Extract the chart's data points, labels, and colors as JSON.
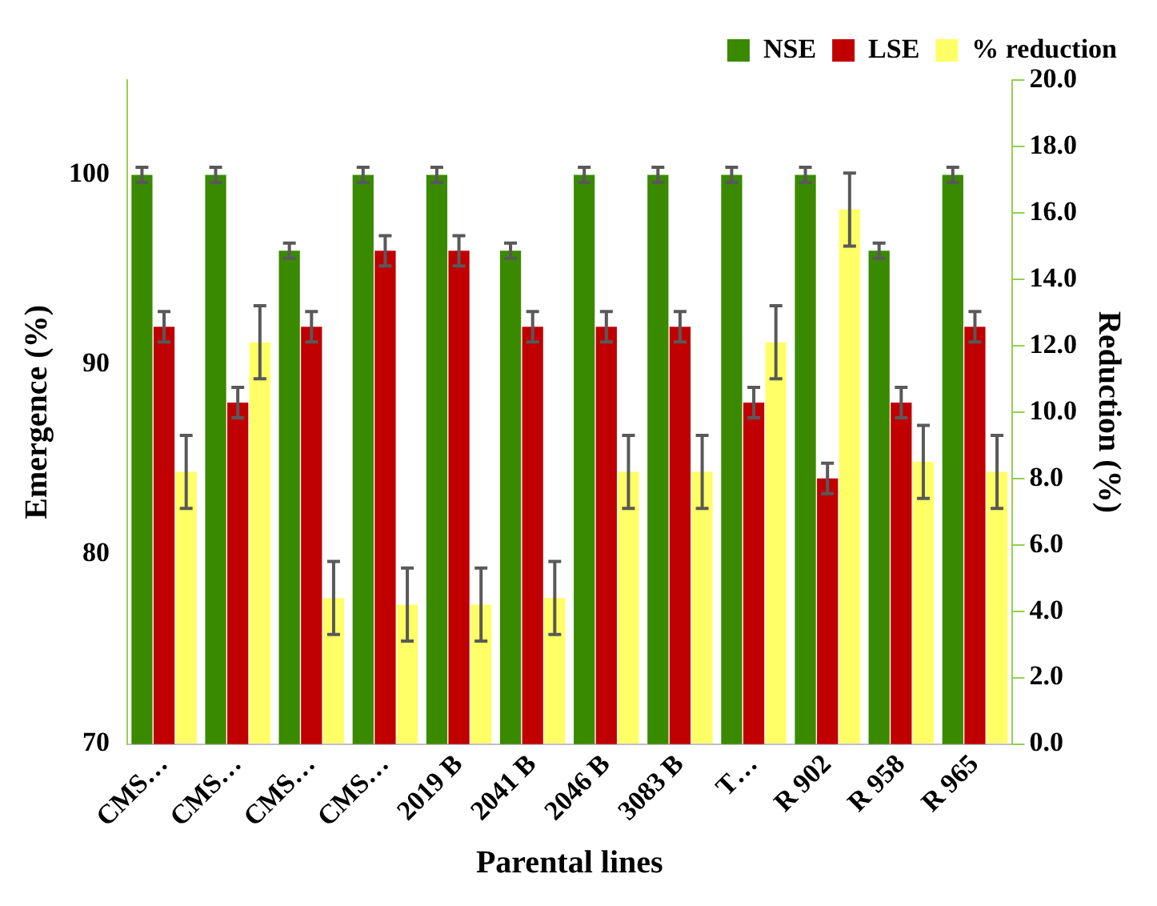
{
  "chart_data": {
    "type": "bar",
    "xlabel": "Parental lines",
    "ylabel": "Emergence (%)",
    "y2label": "Reduction (%)",
    "categories": [
      "CMS…",
      "CMS…",
      "CMS…",
      "CMS…",
      "2019 B",
      "2041 B",
      "2046 B",
      "3083 B",
      "T…",
      "R 902",
      "R 958",
      "R 965"
    ],
    "series": [
      {
        "name": "NSE",
        "color": "#3a8a00",
        "values": [
          100,
          100,
          96,
          100,
          100,
          96,
          100,
          100,
          100,
          100,
          96,
          100
        ],
        "errors": [
          0.4,
          0.4,
          0.4,
          0.4,
          0.4,
          0.4,
          0.4,
          0.4,
          0.4,
          0.4,
          0.4,
          0.4
        ]
      },
      {
        "name": "LSE",
        "color": "#c00000",
        "values": [
          92,
          88,
          92,
          96,
          96,
          92,
          92,
          92,
          88,
          84,
          88,
          92
        ],
        "errors": [
          0.8,
          0.8,
          0.8,
          0.8,
          0.8,
          0.8,
          0.8,
          0.8,
          0.8,
          0.8,
          0.8,
          0.8
        ]
      },
      {
        "name": "% reduction",
        "color": "#ffff66",
        "axis": "y2",
        "values": [
          8.2,
          12.1,
          4.4,
          4.2,
          4.2,
          4.4,
          8.2,
          8.2,
          12.1,
          16.1,
          8.5,
          8.2
        ],
        "errors": [
          1.1,
          1.1,
          1.1,
          1.1,
          1.1,
          1.1,
          1.1,
          1.1,
          1.1,
          1.1,
          1.1,
          1.1
        ]
      }
    ],
    "ylim": [
      70,
      105
    ],
    "yticks": [
      70,
      80,
      90,
      100
    ],
    "y2lim": [
      0,
      20
    ],
    "y2ticks": [
      {
        "value": 0,
        "label": "0.0"
      },
      {
        "value": 2,
        "label": "2.0"
      },
      {
        "value": 4,
        "label": "4.0"
      },
      {
        "value": 6,
        "label": "6.0"
      },
      {
        "value": 8,
        "label": "8.0"
      },
      {
        "value": 10,
        "label": "10.0"
      },
      {
        "value": 12,
        "label": "12.0"
      },
      {
        "value": 14,
        "label": "14.0"
      },
      {
        "value": 16,
        "label": "16.0"
      },
      {
        "value": 18,
        "label": "18.0"
      },
      {
        "value": 20,
        "label": "20.0"
      }
    ],
    "grid": false,
    "legend": "top right"
  }
}
